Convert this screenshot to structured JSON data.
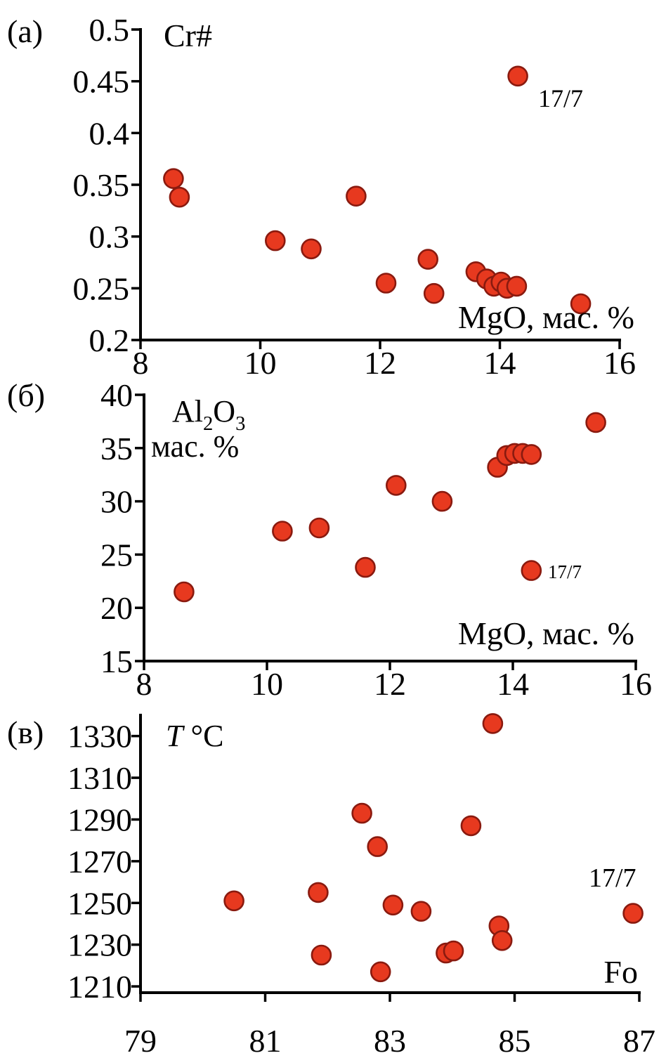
{
  "figure": {
    "background": "#ffffff",
    "point_fill": "#e7391f",
    "point_stroke": "#8a1a0f",
    "axis_color": "#000000",
    "text_color": "#000000"
  },
  "chart_data": [
    {
      "id": "a",
      "type": "scatter",
      "panel_label": "(а)",
      "ylabel_lines": [
        "Cr#"
      ],
      "xlabel": "MgO, мас. %",
      "xlim": [
        8,
        16
      ],
      "ylim": [
        0.2,
        0.5
      ],
      "xticks": [
        8,
        10,
        12,
        14,
        16
      ],
      "yticks": [
        0.5,
        0.45,
        0.4,
        0.35,
        0.3,
        0.25,
        0.2
      ],
      "grid": false,
      "points": [
        [
          8.55,
          0.356
        ],
        [
          8.65,
          0.338
        ],
        [
          10.25,
          0.296
        ],
        [
          10.85,
          0.288
        ],
        [
          11.6,
          0.339
        ],
        [
          12.1,
          0.255
        ],
        [
          12.8,
          0.278
        ],
        [
          12.9,
          0.245
        ],
        [
          13.6,
          0.266
        ],
        [
          13.78,
          0.259
        ],
        [
          13.9,
          0.252
        ],
        [
          14.02,
          0.256
        ],
        [
          14.12,
          0.25
        ],
        [
          14.28,
          0.252
        ],
        [
          15.35,
          0.235
        ]
      ],
      "annotation": {
        "label": "17/7",
        "x": 14.3,
        "y": 0.455
      }
    },
    {
      "id": "b",
      "type": "scatter",
      "panel_label": "(б)",
      "ylabel_lines": [
        "Al₂O₃",
        "мас. %"
      ],
      "xlabel": "MgO, мас. %",
      "xlim": [
        8,
        16
      ],
      "ylim": [
        15,
        40
      ],
      "xticks": [
        8,
        10,
        12,
        14,
        16
      ],
      "yticks": [
        40,
        35,
        30,
        25,
        20,
        15
      ],
      "grid": false,
      "points": [
        [
          8.65,
          21.5
        ],
        [
          10.25,
          27.2
        ],
        [
          10.85,
          27.5
        ],
        [
          11.6,
          23.8
        ],
        [
          12.1,
          31.5
        ],
        [
          12.85,
          30
        ],
        [
          13.75,
          33.2
        ],
        [
          13.9,
          34.3
        ],
        [
          14.03,
          34.5
        ],
        [
          14.16,
          34.5
        ],
        [
          14.3,
          34.4
        ],
        [
          15.35,
          37.4
        ]
      ],
      "annotation": {
        "label": "17/7",
        "x": 14.3,
        "y": 23.5
      }
    },
    {
      "id": "v",
      "type": "scatter",
      "panel_label": "(в)",
      "ylabel_lines": [
        "T °C"
      ],
      "xlabel": "Fo",
      "xlim": [
        79,
        87
      ],
      "ylim": [
        1207,
        1340
      ],
      "xticks": [
        79,
        81,
        83,
        85,
        87
      ],
      "yticks": [
        1330,
        1310,
        1290,
        1270,
        1250,
        1230,
        1210
      ],
      "grid": false,
      "points": [
        [
          80.5,
          1251
        ],
        [
          81.85,
          1255
        ],
        [
          81.9,
          1225
        ],
        [
          82.55,
          1293
        ],
        [
          82.8,
          1277
        ],
        [
          82.85,
          1217
        ],
        [
          83.05,
          1249
        ],
        [
          83.5,
          1246
        ],
        [
          83.9,
          1226
        ],
        [
          84.02,
          1227
        ],
        [
          84.3,
          1287
        ],
        [
          84.65,
          1336
        ],
        [
          84.75,
          1239
        ],
        [
          84.8,
          1232
        ]
      ],
      "annotation": {
        "label": "17/7",
        "x": 86.9,
        "y": 1245
      }
    }
  ]
}
